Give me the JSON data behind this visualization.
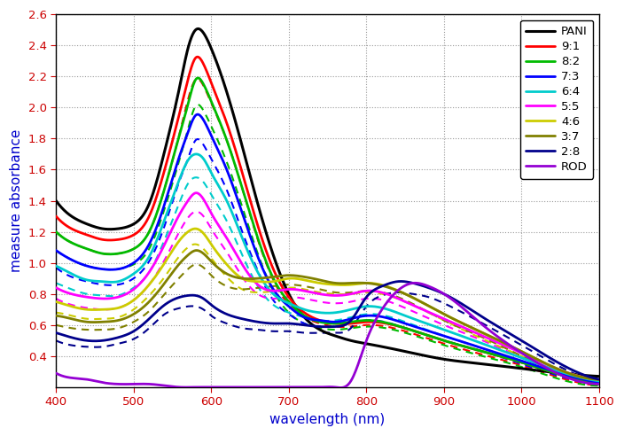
{
  "xlabel": "wavelength (nm)",
  "ylabel": "measure absorbance",
  "xlim": [
    400,
    1100
  ],
  "ylim": [
    0.2,
    2.6
  ],
  "xticks": [
    400,
    500,
    600,
    700,
    800,
    900,
    1000,
    1100
  ],
  "yticks": [
    0.4,
    0.6,
    0.8,
    1.0,
    1.2,
    1.4,
    1.6,
    1.8,
    2.0,
    2.2,
    2.4,
    2.6
  ],
  "series": [
    {
      "label": "PANI",
      "color": "#000000",
      "lw": 2.2,
      "wl": [
        400,
        420,
        440,
        460,
        480,
        500,
        520,
        540,
        560,
        570,
        580,
        590,
        600,
        620,
        640,
        660,
        680,
        700,
        720,
        740,
        760,
        780,
        800,
        850,
        900,
        950,
        1000,
        1050,
        1100
      ],
      "abs": [
        1.4,
        1.3,
        1.25,
        1.22,
        1.22,
        1.25,
        1.38,
        1.72,
        2.15,
        2.38,
        2.5,
        2.48,
        2.38,
        2.1,
        1.75,
        1.38,
        1.05,
        0.8,
        0.65,
        0.57,
        0.53,
        0.5,
        0.48,
        0.43,
        0.38,
        0.35,
        0.32,
        0.29,
        0.27
      ],
      "abs_d": null
    },
    {
      "label": "9:1",
      "color": "#ff0000",
      "lw": 2.0,
      "wl": [
        400,
        420,
        440,
        460,
        480,
        500,
        520,
        540,
        560,
        570,
        580,
        590,
        600,
        620,
        640,
        660,
        680,
        700,
        720,
        740,
        760,
        780,
        800,
        850,
        900,
        950,
        1000,
        1050,
        1100
      ],
      "abs": [
        1.3,
        1.22,
        1.18,
        1.15,
        1.15,
        1.18,
        1.3,
        1.6,
        1.98,
        2.18,
        2.32,
        2.28,
        2.16,
        1.9,
        1.58,
        1.24,
        0.96,
        0.78,
        0.68,
        0.63,
        0.61,
        0.61,
        0.62,
        0.58,
        0.5,
        0.43,
        0.36,
        0.28,
        0.22
      ],
      "abs_d": [
        1.2,
        1.13,
        1.09,
        1.06,
        1.06,
        1.09,
        1.2,
        1.48,
        1.85,
        2.05,
        2.18,
        2.14,
        2.03,
        1.79,
        1.48,
        1.15,
        0.89,
        0.73,
        0.65,
        0.61,
        0.59,
        0.59,
        0.6,
        0.56,
        0.48,
        0.41,
        0.34,
        0.26,
        0.21
      ]
    },
    {
      "label": "8:2",
      "color": "#00bb00",
      "lw": 2.0,
      "wl": [
        400,
        420,
        440,
        460,
        480,
        500,
        520,
        540,
        560,
        570,
        580,
        590,
        600,
        620,
        640,
        660,
        680,
        700,
        720,
        740,
        760,
        780,
        800,
        850,
        900,
        950,
        1000,
        1050,
        1100
      ],
      "abs": [
        1.2,
        1.13,
        1.09,
        1.06,
        1.06,
        1.09,
        1.2,
        1.48,
        1.84,
        2.02,
        2.18,
        2.15,
        2.04,
        1.79,
        1.48,
        1.16,
        0.9,
        0.75,
        0.66,
        0.62,
        0.61,
        0.62,
        0.63,
        0.58,
        0.5,
        0.43,
        0.36,
        0.28,
        0.22
      ],
      "abs_d": [
        1.08,
        1.02,
        0.98,
        0.96,
        0.96,
        0.99,
        1.09,
        1.35,
        1.68,
        1.86,
        2.01,
        1.98,
        1.88,
        1.65,
        1.36,
        1.06,
        0.82,
        0.68,
        0.61,
        0.58,
        0.57,
        0.58,
        0.59,
        0.55,
        0.47,
        0.4,
        0.33,
        0.25,
        0.21
      ]
    },
    {
      "label": "7:3",
      "color": "#0000ff",
      "lw": 2.0,
      "wl": [
        400,
        420,
        440,
        460,
        480,
        500,
        520,
        540,
        560,
        570,
        580,
        590,
        600,
        620,
        640,
        660,
        680,
        700,
        720,
        740,
        760,
        780,
        800,
        850,
        900,
        950,
        1000,
        1050,
        1100
      ],
      "abs": [
        1.08,
        1.02,
        0.98,
        0.96,
        0.96,
        1.0,
        1.12,
        1.38,
        1.7,
        1.84,
        1.95,
        1.92,
        1.82,
        1.6,
        1.32,
        1.04,
        0.83,
        0.72,
        0.65,
        0.63,
        0.62,
        0.64,
        0.66,
        0.61,
        0.53,
        0.45,
        0.37,
        0.29,
        0.23
      ],
      "abs_d": [
        0.97,
        0.91,
        0.88,
        0.86,
        0.86,
        0.9,
        1.01,
        1.24,
        1.54,
        1.67,
        1.79,
        1.76,
        1.67,
        1.47,
        1.2,
        0.95,
        0.76,
        0.67,
        0.61,
        0.59,
        0.59,
        0.61,
        0.63,
        0.58,
        0.5,
        0.43,
        0.35,
        0.27,
        0.22
      ]
    },
    {
      "label": "6:4",
      "color": "#00cccc",
      "lw": 2.0,
      "wl": [
        400,
        420,
        440,
        460,
        480,
        500,
        520,
        540,
        560,
        570,
        580,
        590,
        600,
        620,
        640,
        660,
        680,
        700,
        720,
        740,
        760,
        780,
        800,
        850,
        900,
        950,
        1000,
        1050,
        1100
      ],
      "abs": [
        0.98,
        0.93,
        0.89,
        0.88,
        0.88,
        0.93,
        1.04,
        1.28,
        1.55,
        1.66,
        1.7,
        1.67,
        1.58,
        1.4,
        1.16,
        0.94,
        0.8,
        0.74,
        0.7,
        0.68,
        0.68,
        0.7,
        0.72,
        0.66,
        0.57,
        0.48,
        0.39,
        0.3,
        0.24
      ],
      "abs_d": [
        0.87,
        0.83,
        0.8,
        0.79,
        0.79,
        0.84,
        0.94,
        1.15,
        1.4,
        1.51,
        1.55,
        1.52,
        1.44,
        1.27,
        1.05,
        0.85,
        0.73,
        0.68,
        0.65,
        0.63,
        0.63,
        0.65,
        0.67,
        0.62,
        0.53,
        0.45,
        0.36,
        0.28,
        0.22
      ]
    },
    {
      "label": "5:5",
      "color": "#ff00ff",
      "lw": 2.0,
      "wl": [
        400,
        420,
        440,
        460,
        480,
        500,
        520,
        540,
        560,
        570,
        580,
        590,
        600,
        620,
        640,
        660,
        680,
        700,
        720,
        740,
        760,
        780,
        800,
        850,
        900,
        950,
        1000,
        1050,
        1100
      ],
      "abs": [
        0.84,
        0.8,
        0.78,
        0.77,
        0.78,
        0.83,
        0.94,
        1.12,
        1.32,
        1.4,
        1.45,
        1.41,
        1.32,
        1.16,
        0.99,
        0.86,
        0.82,
        0.83,
        0.82,
        0.8,
        0.79,
        0.8,
        0.82,
        0.75,
        0.64,
        0.53,
        0.42,
        0.31,
        0.25
      ],
      "abs_d": [
        0.77,
        0.73,
        0.71,
        0.7,
        0.71,
        0.76,
        0.86,
        1.02,
        1.21,
        1.29,
        1.33,
        1.3,
        1.22,
        1.07,
        0.91,
        0.8,
        0.77,
        0.78,
        0.77,
        0.75,
        0.74,
        0.75,
        0.77,
        0.71,
        0.6,
        0.5,
        0.39,
        0.29,
        0.23
      ]
    },
    {
      "label": "4:6",
      "color": "#cccc00",
      "lw": 2.0,
      "wl": [
        400,
        420,
        440,
        460,
        480,
        500,
        520,
        540,
        560,
        570,
        580,
        590,
        600,
        620,
        640,
        660,
        680,
        700,
        720,
        740,
        760,
        780,
        800,
        850,
        900,
        950,
        1000,
        1050,
        1100
      ],
      "abs": [
        0.75,
        0.72,
        0.7,
        0.7,
        0.71,
        0.76,
        0.86,
        1.0,
        1.15,
        1.2,
        1.22,
        1.19,
        1.12,
        0.99,
        0.9,
        0.88,
        0.88,
        0.9,
        0.89,
        0.87,
        0.86,
        0.86,
        0.87,
        0.8,
        0.67,
        0.55,
        0.43,
        0.31,
        0.25
      ],
      "abs_d": [
        0.68,
        0.66,
        0.64,
        0.64,
        0.65,
        0.7,
        0.79,
        0.91,
        1.05,
        1.1,
        1.12,
        1.09,
        1.03,
        0.91,
        0.83,
        0.81,
        0.82,
        0.84,
        0.83,
        0.81,
        0.8,
        0.8,
        0.81,
        0.75,
        0.63,
        0.51,
        0.4,
        0.29,
        0.23
      ]
    },
    {
      "label": "3:7",
      "color": "#808000",
      "lw": 2.0,
      "wl": [
        400,
        420,
        440,
        460,
        480,
        500,
        520,
        540,
        560,
        570,
        580,
        590,
        600,
        620,
        640,
        660,
        680,
        700,
        720,
        740,
        760,
        780,
        800,
        850,
        900,
        950,
        1000,
        1050,
        1100
      ],
      "abs": [
        0.66,
        0.64,
        0.62,
        0.62,
        0.63,
        0.67,
        0.75,
        0.87,
        1.0,
        1.05,
        1.08,
        1.06,
        1.01,
        0.93,
        0.9,
        0.9,
        0.91,
        0.92,
        0.91,
        0.89,
        0.87,
        0.87,
        0.87,
        0.8,
        0.67,
        0.55,
        0.43,
        0.31,
        0.25
      ],
      "abs_d": [
        0.6,
        0.58,
        0.57,
        0.57,
        0.58,
        0.62,
        0.69,
        0.8,
        0.91,
        0.96,
        0.99,
        0.97,
        0.92,
        0.85,
        0.83,
        0.84,
        0.85,
        0.86,
        0.85,
        0.83,
        0.81,
        0.81,
        0.82,
        0.76,
        0.63,
        0.52,
        0.4,
        0.29,
        0.23
      ]
    },
    {
      "label": "2:8",
      "color": "#00008b",
      "lw": 2.0,
      "wl": [
        400,
        420,
        440,
        460,
        480,
        500,
        520,
        540,
        560,
        570,
        580,
        590,
        600,
        620,
        640,
        660,
        680,
        700,
        720,
        740,
        760,
        780,
        800,
        820,
        840,
        860,
        880,
        900,
        950,
        1000,
        1050,
        1100
      ],
      "abs": [
        0.55,
        0.52,
        0.5,
        0.5,
        0.52,
        0.56,
        0.64,
        0.73,
        0.78,
        0.79,
        0.79,
        0.77,
        0.73,
        0.67,
        0.64,
        0.62,
        0.61,
        0.61,
        0.6,
        0.59,
        0.59,
        0.63,
        0.78,
        0.85,
        0.88,
        0.87,
        0.84,
        0.8,
        0.65,
        0.5,
        0.35,
        0.25
      ],
      "abs_d": [
        0.5,
        0.47,
        0.46,
        0.46,
        0.48,
        0.51,
        0.58,
        0.67,
        0.71,
        0.72,
        0.72,
        0.7,
        0.66,
        0.61,
        0.58,
        0.57,
        0.56,
        0.56,
        0.55,
        0.55,
        0.55,
        0.58,
        0.72,
        0.79,
        0.81,
        0.8,
        0.78,
        0.74,
        0.61,
        0.47,
        0.33,
        0.23
      ]
    },
    {
      "label": "ROD",
      "color": "#9400d3",
      "lw": 2.0,
      "wl": [
        400,
        420,
        440,
        460,
        480,
        500,
        520,
        540,
        560,
        580,
        600,
        620,
        640,
        660,
        680,
        700,
        720,
        740,
        760,
        780,
        800,
        820,
        840,
        860,
        880,
        900,
        950,
        1000,
        1050,
        1100
      ],
      "abs": [
        0.29,
        0.26,
        0.25,
        0.23,
        0.22,
        0.22,
        0.22,
        0.21,
        0.2,
        0.2,
        0.2,
        0.2,
        0.2,
        0.2,
        0.2,
        0.2,
        0.2,
        0.2,
        0.2,
        0.24,
        0.5,
        0.7,
        0.82,
        0.87,
        0.85,
        0.8,
        0.6,
        0.42,
        0.28,
        0.22
      ],
      "abs_d": null
    }
  ],
  "bg_color": "#ffffff",
  "grid_color": "#999999",
  "xlabel_color": "#0000cc",
  "ylabel_color": "#0000cc",
  "tick_color": "#cc0000",
  "spine_color": "#000000",
  "legend_fontsize": 9.5,
  "axis_fontsize": 11
}
